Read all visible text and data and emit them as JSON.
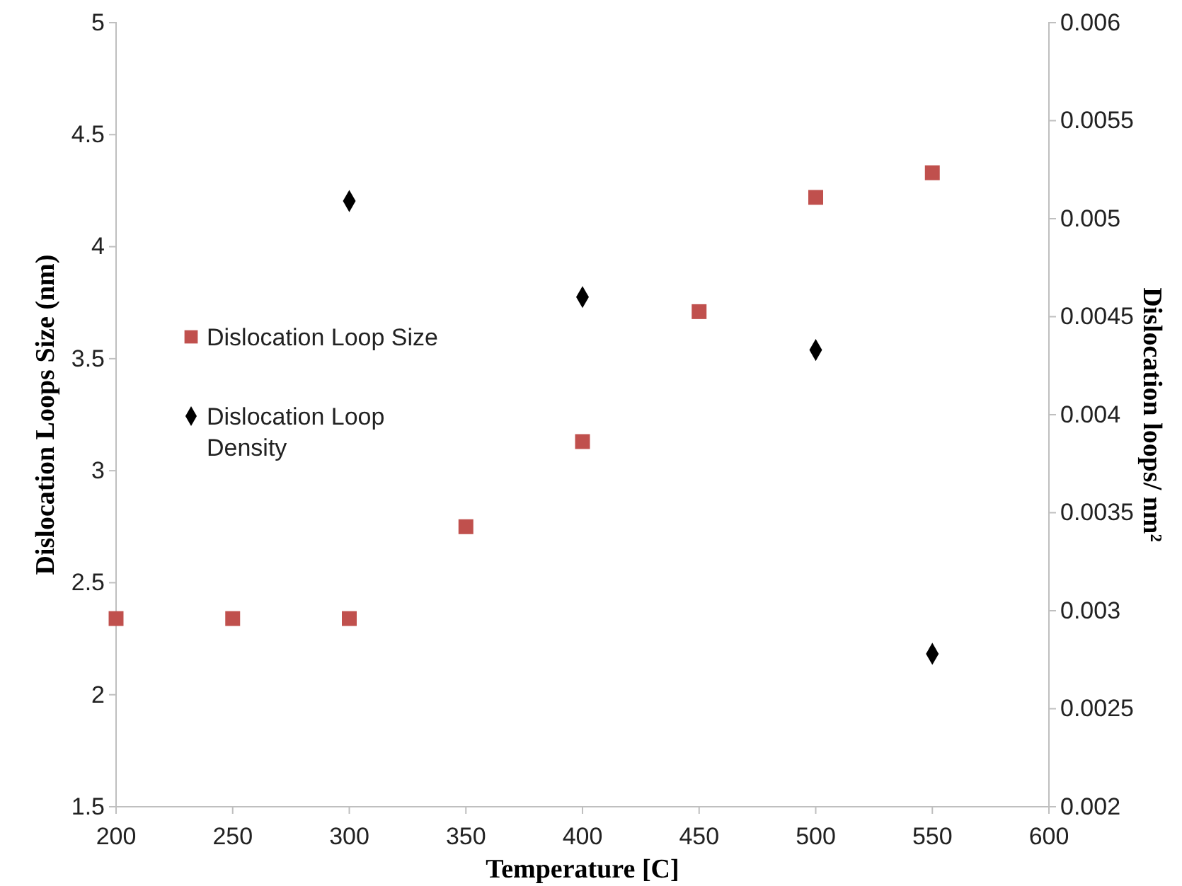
{
  "chart_data": {
    "type": "scatter",
    "xlabel": "Temperature [C]",
    "ylabel": "Dislocation Loops Size (nm)",
    "y2label": "Dislocation loops/ nm²",
    "xlim": [
      200,
      600
    ],
    "xticks": [
      200,
      250,
      300,
      350,
      400,
      450,
      500,
      550,
      600
    ],
    "ylim": [
      1.5,
      5
    ],
    "yticks": [
      1.5,
      2,
      2.5,
      3,
      3.5,
      4,
      4.5,
      5
    ],
    "y2lim": [
      0.002,
      0.006
    ],
    "y2ticks": [
      0.002,
      0.0025,
      0.003,
      0.0035,
      0.004,
      0.0045,
      0.005,
      0.0055,
      0.006
    ],
    "grid": false,
    "legend": "left",
    "series": [
      {
        "name": "Dislocation Loop Size",
        "color": "#c0504d",
        "marker": "square",
        "x": [
          200,
          250,
          300,
          350,
          400,
          450,
          500,
          550
        ],
        "values": [
          2.34,
          2.34,
          2.34,
          2.75,
          3.13,
          3.71,
          4.22,
          4.33
        ]
      },
      {
        "name": "Dislocation Loop Density",
        "color": "#000000",
        "marker": "diamond",
        "axis": "y2",
        "x": [
          300,
          400,
          500,
          550
        ],
        "values": [
          0.00509,
          0.0046,
          0.00433,
          0.00278
        ]
      }
    ]
  }
}
